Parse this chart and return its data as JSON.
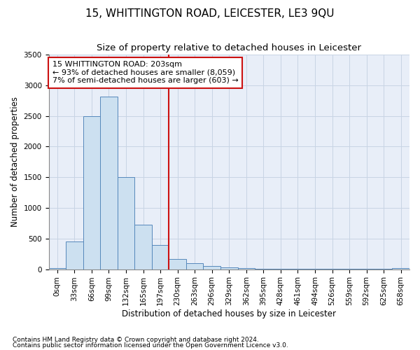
{
  "title": "15, WHITTINGTON ROAD, LEICESTER, LE3 9QU",
  "subtitle": "Size of property relative to detached houses in Leicester",
  "xlabel": "Distribution of detached houses by size in Leicester",
  "ylabel": "Number of detached properties",
  "footnote1": "Contains HM Land Registry data © Crown copyright and database right 2024.",
  "footnote2": "Contains public sector information licensed under the Open Government Licence v3.0.",
  "bar_labels": [
    "0sqm",
    "33sqm",
    "66sqm",
    "99sqm",
    "132sqm",
    "165sqm",
    "197sqm",
    "230sqm",
    "263sqm",
    "296sqm",
    "329sqm",
    "362sqm",
    "395sqm",
    "428sqm",
    "461sqm",
    "494sqm",
    "526sqm",
    "559sqm",
    "592sqm",
    "625sqm",
    "658sqm"
  ],
  "bar_values": [
    20,
    450,
    2500,
    2820,
    1500,
    730,
    390,
    170,
    95,
    55,
    30,
    15,
    5,
    5,
    5,
    5,
    5,
    5,
    5,
    5,
    20
  ],
  "bar_color": "#cce0f0",
  "bar_edge_color": "#5588bb",
  "grid_color": "#c8d4e4",
  "background_color": "#e8eef8",
  "vline_x": 6.5,
  "vline_color": "#cc1111",
  "annotation_text": "15 WHITTINGTON ROAD: 203sqm\n← 93% of detached houses are smaller (8,059)\n7% of semi-detached houses are larger (603) →",
  "annotation_box_color": "#cc1111",
  "ylim": [
    0,
    3500
  ],
  "yticks": [
    0,
    500,
    1000,
    1500,
    2000,
    2500,
    3000,
    3500
  ],
  "title_fontsize": 11,
  "subtitle_fontsize": 9.5,
  "label_fontsize": 8.5,
  "tick_fontsize": 7.5,
  "annotation_fontsize": 8
}
